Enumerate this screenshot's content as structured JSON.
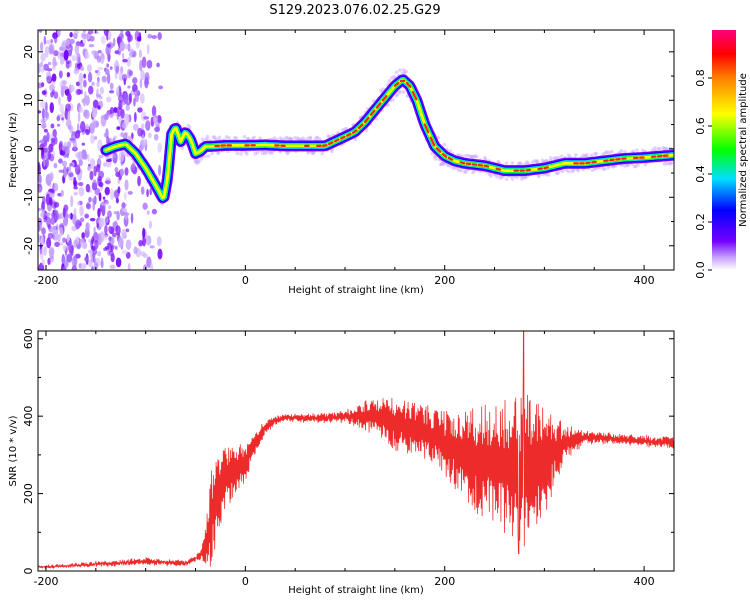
{
  "title": "S129.2023.076.02.25.G29",
  "chart_data": [
    {
      "type": "heatmap",
      "name": "spectrogram",
      "xlabel": "Height of straight line (km)",
      "ylabel": "Frequency (Hz)",
      "xlim": [
        -208,
        430
      ],
      "ylim": [
        -25,
        24.5
      ],
      "xticks": [
        -200,
        0,
        200,
        400
      ],
      "yticks": [
        -20,
        -10,
        0,
        10,
        20
      ],
      "grid": false,
      "ridge": {
        "x": [
          -140,
          -130,
          -120,
          -110,
          -100,
          -90,
          -82,
          -78,
          -74,
          -70,
          -65,
          -60,
          -55,
          -50,
          -45,
          -40,
          -35,
          -20,
          0,
          20,
          40,
          60,
          80,
          100,
          110,
          120,
          130,
          140,
          150,
          158,
          165,
          172,
          180,
          190,
          200,
          210,
          220,
          240,
          260,
          280,
          300,
          320,
          340,
          360,
          380,
          400,
          430
        ],
        "y": [
          -0.3,
          0.5,
          1,
          -1,
          -4,
          -7.5,
          -10.5,
          -6,
          3,
          4.5,
          1.5,
          3.5,
          2,
          -1,
          -0.5,
          0.5,
          0.5,
          0.7,
          0.7,
          0.8,
          0.6,
          0.6,
          0.6,
          2.5,
          3.5,
          5.5,
          8,
          10.5,
          13,
          14.3,
          13,
          10,
          5,
          0.5,
          -1.5,
          -2.5,
          -3,
          -3.5,
          -4.5,
          -4.5,
          -4,
          -3,
          -3,
          -2.5,
          -2,
          -1.8,
          -1.3
        ]
      },
      "colorbar": {
        "label": "Normalized spectral amplitude",
        "ticks": [
          0.0,
          0.2,
          0.4,
          0.6,
          0.8
        ],
        "range": [
          0,
          1
        ],
        "colormap": [
          "#ffffff",
          "#7300ff",
          "#0000ff",
          "#00e0ff",
          "#00ff00",
          "#ffff00",
          "#ff0000",
          "#ff0080"
        ]
      }
    },
    {
      "type": "line",
      "name": "snr",
      "xlabel": "Height of straight line (km)",
      "ylabel": "SNR (10 * v/v)",
      "xlim": [
        -208,
        430
      ],
      "ylim": [
        0,
        620
      ],
      "xticks": [
        -200,
        0,
        200,
        400
      ],
      "yticks": [
        0,
        200,
        400,
        600
      ],
      "color": "#ee2b2b",
      "grid": false,
      "envelope": {
        "x": [
          -208,
          -150,
          -100,
          -60,
          -45,
          -38,
          -34,
          -30,
          -20,
          0,
          10,
          20,
          30,
          40,
          60,
          80,
          100,
          130,
          150,
          180,
          200,
          220,
          240,
          260,
          280,
          300,
          320,
          340,
          380,
          430
        ],
        "base": [
          10,
          18,
          25,
          20,
          40,
          80,
          140,
          180,
          240,
          280,
          330,
          370,
          390,
          395,
          395,
          395,
          400,
          400,
          380,
          360,
          330,
          300,
          280,
          270,
          260,
          290,
          330,
          345,
          340,
          330
        ],
        "spread": [
          3,
          5,
          8,
          5,
          10,
          80,
          150,
          120,
          80,
          50,
          30,
          15,
          10,
          8,
          10,
          10,
          15,
          50,
          70,
          70,
          80,
          120,
          150,
          170,
          200,
          150,
          50,
          15,
          12,
          15
        ]
      },
      "peak": {
        "x": 279,
        "y": 620
      },
      "trough": {
        "x": 279,
        "y": 45
      }
    }
  ]
}
